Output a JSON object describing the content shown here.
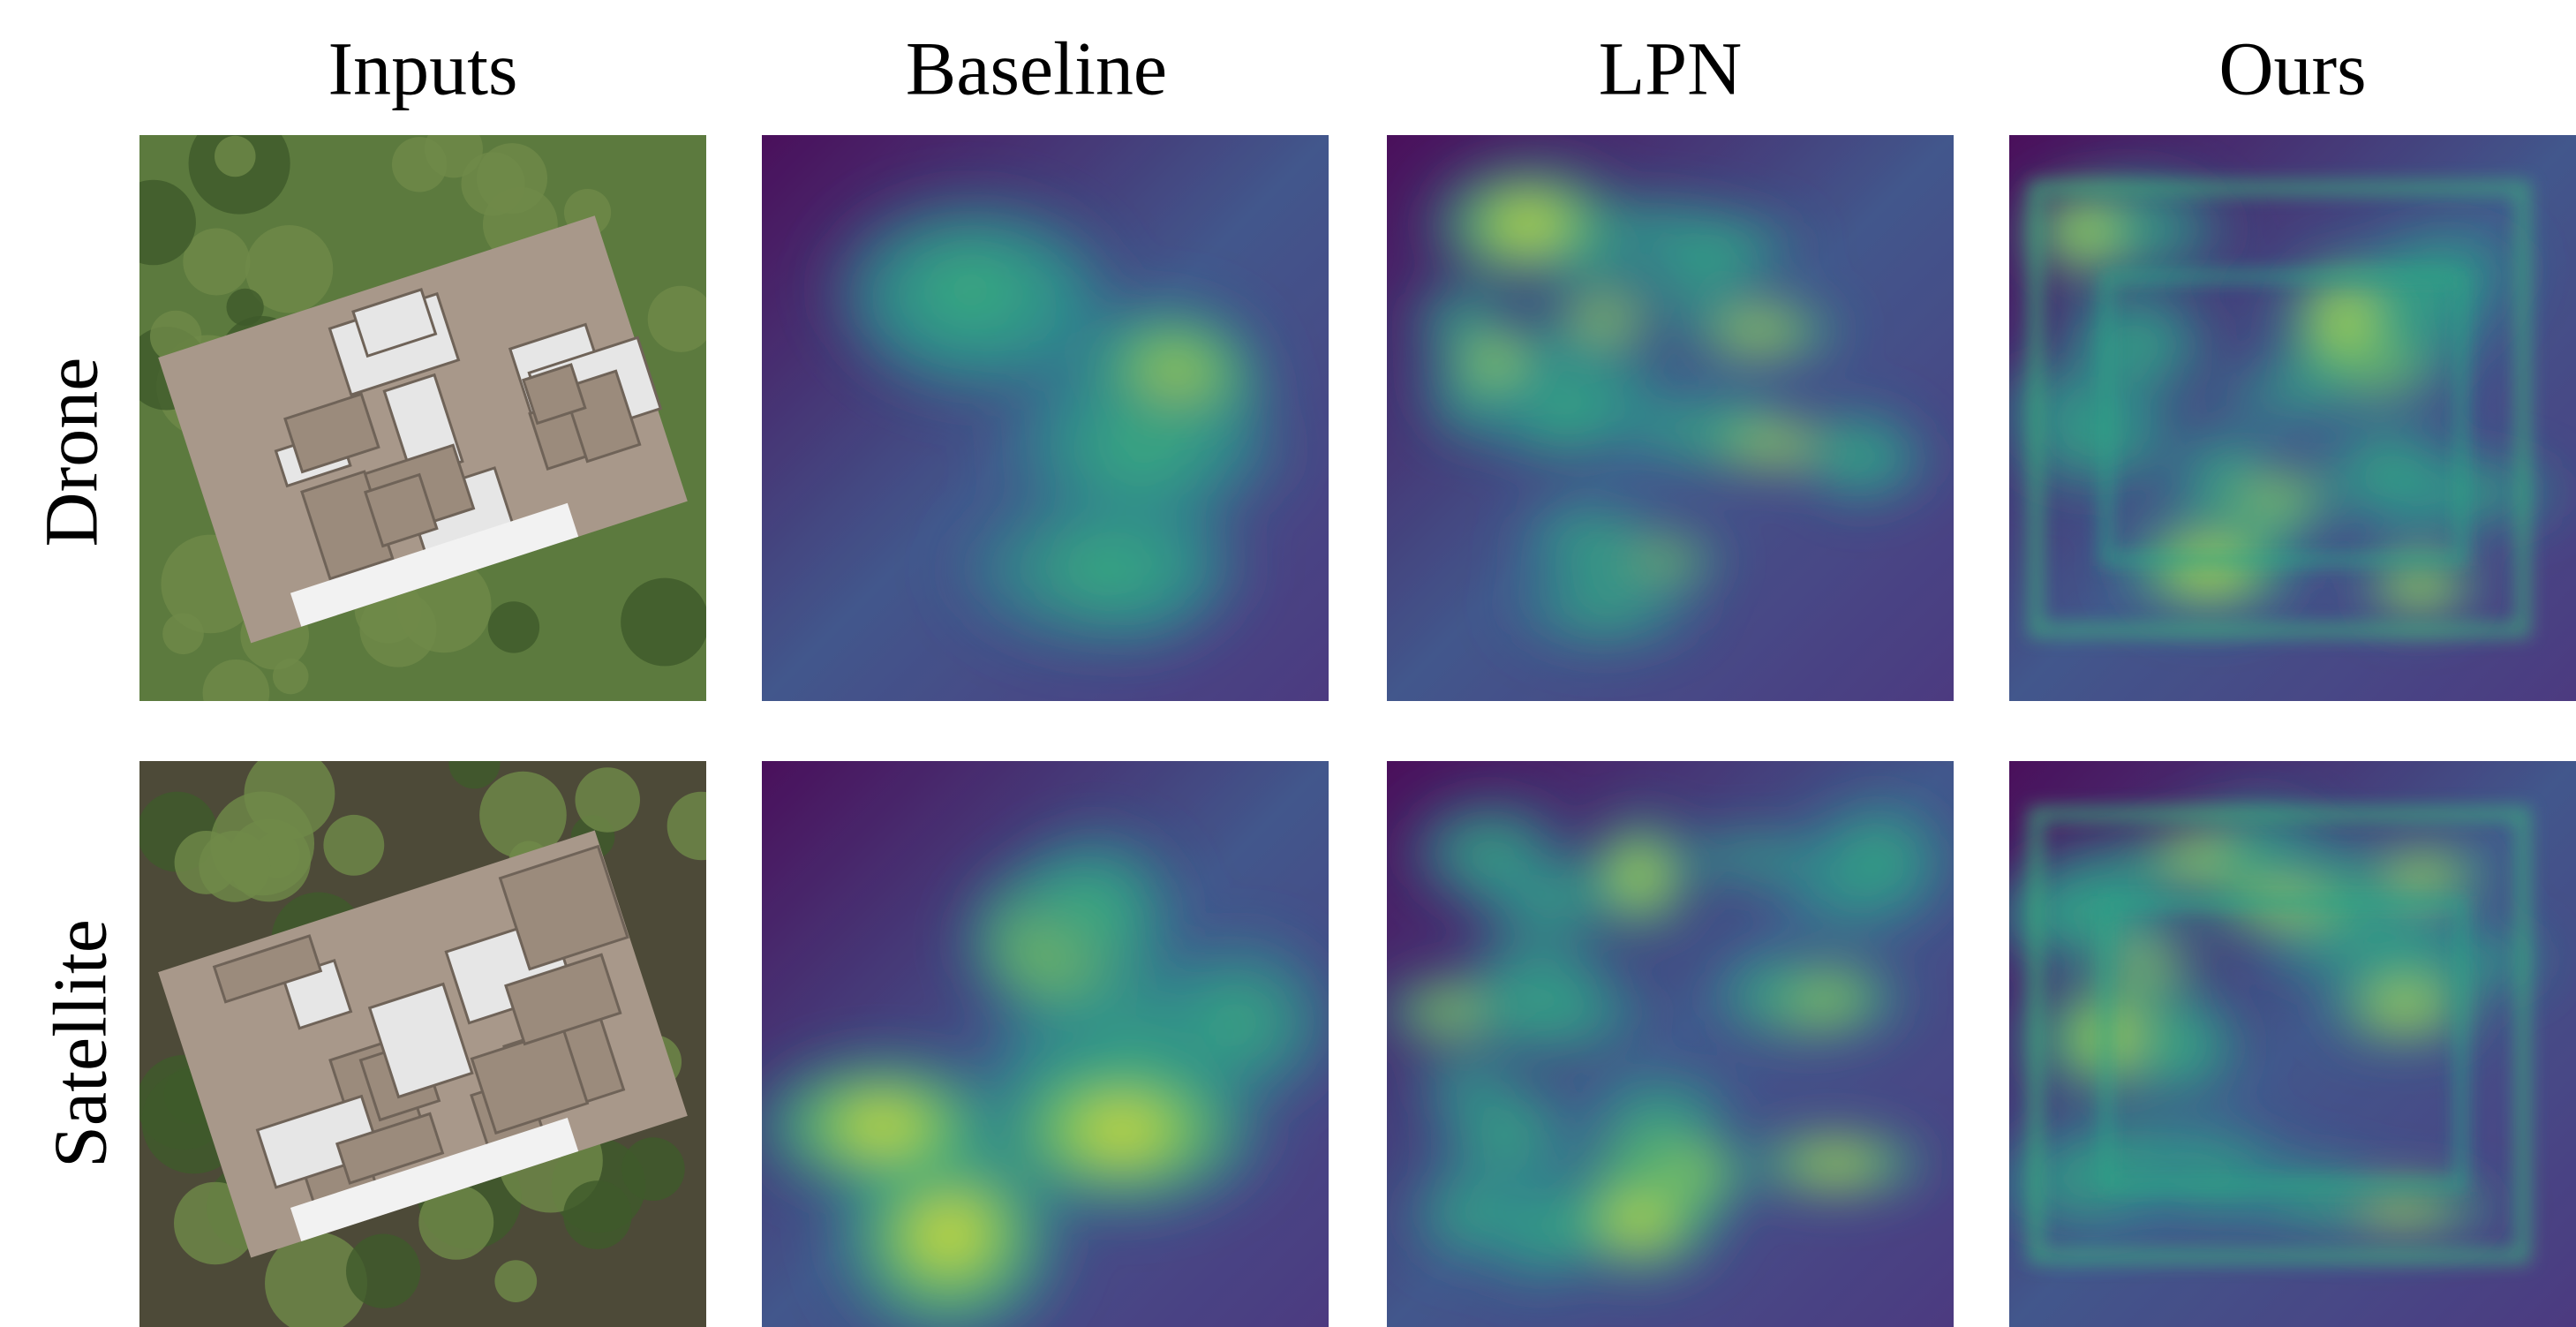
{
  "columns": [
    "Inputs",
    "Baseline",
    "LPN",
    "Ours"
  ],
  "rows": [
    "Drone",
    "Satellite"
  ]
}
